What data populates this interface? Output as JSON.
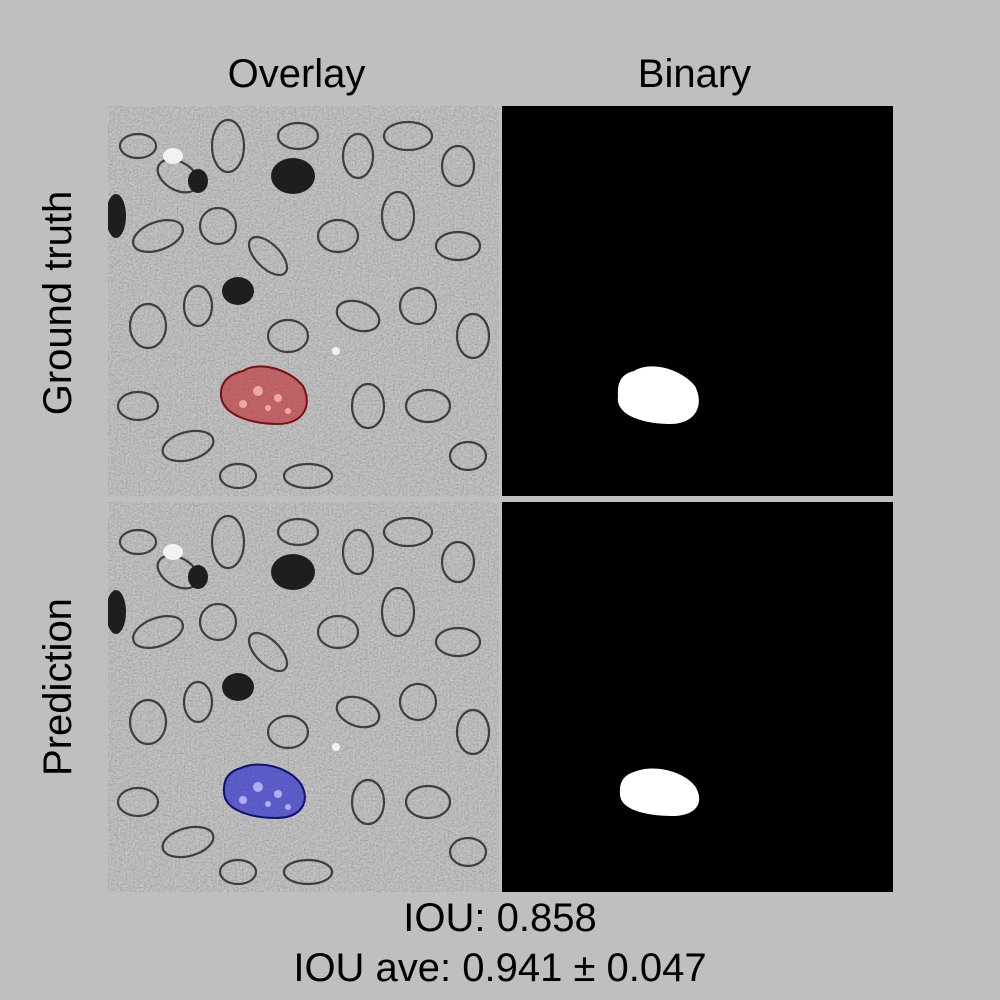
{
  "columns": {
    "overlay": "Overlay",
    "binary": "Binary"
  },
  "rows": {
    "ground_truth": "Ground truth",
    "prediction": "Prediction"
  },
  "metrics": {
    "iou": "IOU: 0.858",
    "iou_ave": "IOU ave: 0.941 ± 0.047"
  },
  "colors": {
    "background": "#bfbfbf",
    "ground_truth_overlay": "#c0282d",
    "prediction_overlay": "#2a2ad0",
    "mask_foreground": "#ffffff",
    "mask_background": "#000000"
  }
}
